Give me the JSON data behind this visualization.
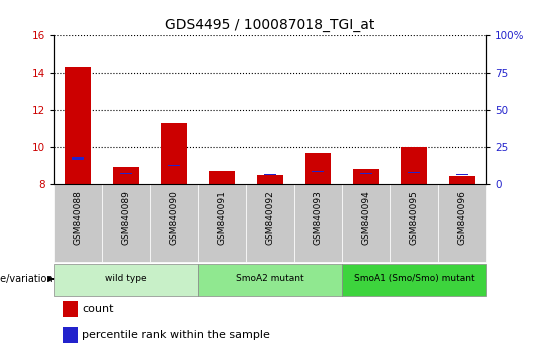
{
  "title": "GDS4495 / 100087018_TGI_at",
  "samples": [
    "GSM840088",
    "GSM840089",
    "GSM840090",
    "GSM840091",
    "GSM840092",
    "GSM840093",
    "GSM840094",
    "GSM840095",
    "GSM840096"
  ],
  "red_tops": [
    14.3,
    8.9,
    11.3,
    8.7,
    8.48,
    9.65,
    8.8,
    10.0,
    8.45
  ],
  "blue_tops": [
    9.3,
    8.55,
    8.95,
    8.57,
    8.5,
    8.65,
    8.52,
    8.6,
    8.5
  ],
  "blue_heights": [
    0.18,
    0.07,
    0.07,
    0.05,
    0.05,
    0.08,
    0.05,
    0.07,
    0.05
  ],
  "ymin": 8,
  "ymax": 16,
  "y2min": 0,
  "y2max": 100,
  "yticks": [
    8,
    10,
    12,
    14,
    16
  ],
  "y2ticks": [
    0,
    25,
    50,
    75,
    100
  ],
  "groups": [
    {
      "label": "wild type",
      "indices": [
        0,
        1,
        2
      ],
      "color": "#c8f0c8"
    },
    {
      "label": "SmoA2 mutant",
      "indices": [
        3,
        4,
        5
      ],
      "color": "#90e890"
    },
    {
      "label": "SmoA1 (Smo/Smo) mutant",
      "indices": [
        6,
        7,
        8
      ],
      "color": "#3dd43d"
    }
  ],
  "bar_width": 0.55,
  "blue_bar_width": 0.25,
  "red_color": "#cc0000",
  "blue_color": "#2222cc",
  "tick_bg_color": "#c8c8c8",
  "bg_color": "#ffffff",
  "grid_color": "#000000",
  "title_fontsize": 10,
  "tick_fontsize": 7.5,
  "legend_label_count": "count",
  "legend_label_pct": "percentile rank within the sample",
  "genotype_label": "genotype/variation"
}
